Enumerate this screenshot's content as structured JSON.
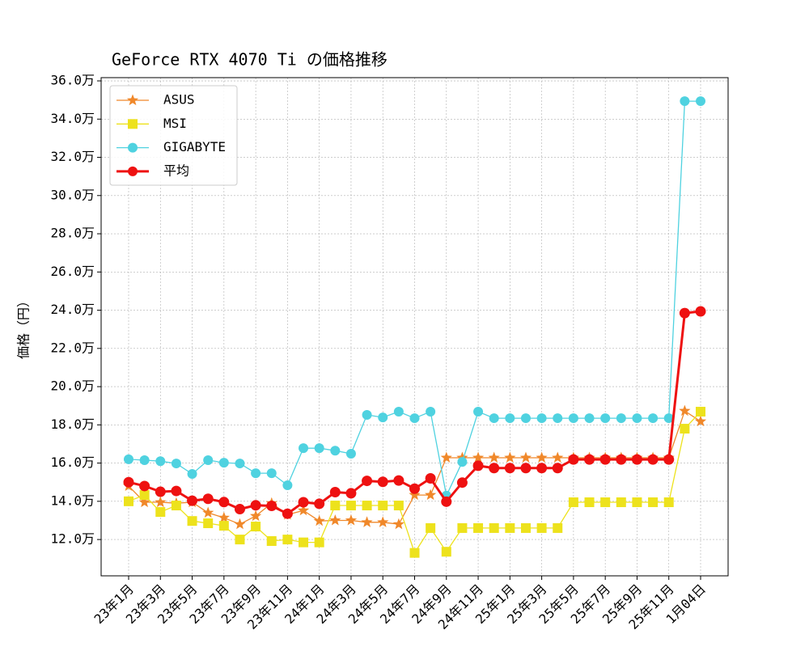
{
  "chart_data": {
    "type": "line",
    "title": "GeForce RTX 4070 Ti の価格推移",
    "y_label": "価格（円）",
    "categories": [
      "23年1月",
      null,
      "23年3月",
      null,
      "23年5月",
      null,
      "23年7月",
      null,
      "23年9月",
      null,
      "23年11月",
      null,
      "24年1月",
      null,
      "24年3月",
      null,
      "24年5月",
      null,
      "24年7月",
      null,
      "24年9月",
      null,
      "24年11月",
      null,
      "25年1月",
      null,
      "25年3月",
      null,
      "25年5月",
      null,
      "25年7月",
      null,
      "25年9月",
      null,
      "25年11月",
      null,
      "1月04日"
    ],
    "series": [
      {
        "name": "ASUS",
        "color": "#f0882a",
        "marker": "star",
        "linewidth": 1.3,
        "values": [
          148000,
          139500,
          139500,
          139000,
          139500,
          134000,
          131400,
          128000,
          132300,
          139000,
          133000,
          135200,
          129700,
          130000,
          130000,
          129000,
          129000,
          128000,
          143300,
          143300,
          162800,
          162800,
          162800,
          162800,
          162800,
          162800,
          162800,
          162800,
          162800,
          162800,
          162800,
          162800,
          162800,
          162800,
          162800,
          187300,
          181800
        ]
      },
      {
        "name": "MSI",
        "color": "#ede21c",
        "marker": "square",
        "linewidth": 1.3,
        "values": [
          140000,
          143300,
          134400,
          137800,
          129700,
          128500,
          127200,
          120000,
          126800,
          119200,
          120000,
          118500,
          118500,
          137800,
          137800,
          137800,
          137800,
          137800,
          113000,
          126000,
          113600,
          126000,
          126000,
          126000,
          126000,
          126000,
          126000,
          126000,
          139500,
          139500,
          139500,
          139500,
          139500,
          139500,
          139500,
          178000,
          186900
        ]
      },
      {
        "name": "GIGABYTE",
        "color": "#4fd2e0",
        "marker": "circle",
        "linewidth": 1.3,
        "values": [
          162000,
          161500,
          161000,
          159800,
          154300,
          161500,
          160200,
          159800,
          154700,
          154700,
          148400,
          167800,
          167800,
          166500,
          164900,
          185200,
          183900,
          186900,
          183500,
          186900,
          143000,
          160600,
          186900,
          183500,
          183500,
          183500,
          183500,
          183500,
          183500,
          183500,
          183500,
          183500,
          183500,
          183500,
          183500,
          349400,
          349400
        ]
      },
      {
        "name": "平均",
        "color": "#ee1111",
        "marker": "circle",
        "linewidth": 3,
        "values": [
          150000,
          148000,
          145000,
          145400,
          140300,
          141300,
          139600,
          135900,
          137900,
          137600,
          133500,
          139500,
          138700,
          144800,
          144200,
          150700,
          150200,
          150900,
          146600,
          152000,
          139800,
          149800,
          158600,
          157400,
          157400,
          157400,
          157400,
          157400,
          161900,
          161900,
          161900,
          161900,
          161900,
          161900,
          161900,
          238500,
          239400
        ]
      }
    ],
    "ylim": [
      101000,
      361700
    ],
    "yticks": [
      {
        "value": 120000,
        "label": "12.0万"
      },
      {
        "value": 140000,
        "label": "14.0万"
      },
      {
        "value": 160000,
        "label": "16.0万"
      },
      {
        "value": 180000,
        "label": "18.0万"
      },
      {
        "value": 200000,
        "label": "20.0万"
      },
      {
        "value": 220000,
        "label": "22.0万"
      },
      {
        "value": 240000,
        "label": "24.0万"
      },
      {
        "value": 260000,
        "label": "26.0万"
      },
      {
        "value": 280000,
        "label": "28.0万"
      },
      {
        "value": 300000,
        "label": "30.0万"
      },
      {
        "value": 320000,
        "label": "32.0万"
      },
      {
        "value": 340000,
        "label": "34.0万"
      },
      {
        "value": 360000,
        "label": "36.0万"
      }
    ],
    "grid": true,
    "legend": "upper-left"
  }
}
